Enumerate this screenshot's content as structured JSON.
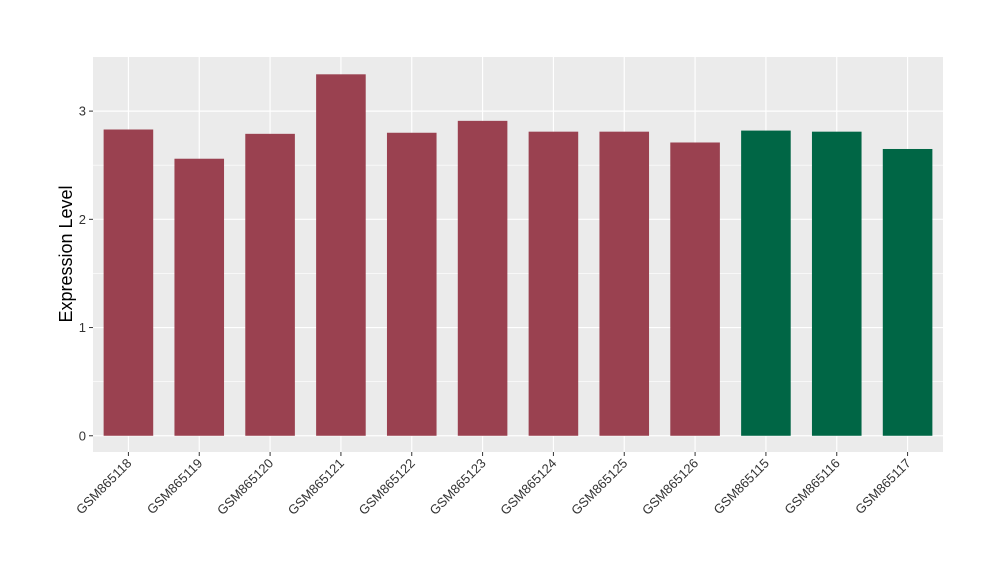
{
  "chart_data": {
    "type": "bar",
    "title": "",
    "xlabel": "",
    "ylabel": "Expression Level",
    "ylim": [
      -0.15,
      3.5
    ],
    "yticks": [
      0,
      1,
      2,
      3
    ],
    "grid": true,
    "categories": [
      "GSM865118",
      "GSM865119",
      "GSM865120",
      "GSM865121",
      "GSM865122",
      "GSM865123",
      "GSM865124",
      "GSM865125",
      "GSM865126",
      "GSM865115",
      "GSM865116",
      "GSM865117"
    ],
    "values": [
      2.83,
      2.56,
      2.79,
      3.34,
      2.8,
      2.91,
      2.81,
      2.81,
      2.71,
      2.82,
      2.81,
      2.65
    ],
    "bar_colors": [
      "#9a4150",
      "#9a4150",
      "#9a4150",
      "#9a4150",
      "#9a4150",
      "#9a4150",
      "#9a4150",
      "#9a4150",
      "#9a4150",
      "#006645",
      "#006645",
      "#006645"
    ]
  },
  "colors": {
    "panel_background": "#ebebeb",
    "grid_major": "#ffffff",
    "group_a": "#9a4150",
    "group_b": "#006645"
  }
}
